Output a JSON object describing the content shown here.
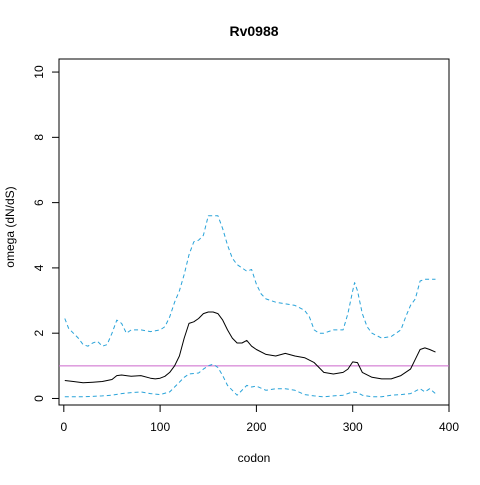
{
  "chart_data": {
    "type": "line",
    "title": "Rv0988",
    "xlabel": "codon",
    "ylabel": "omega (dN/dS)",
    "xlim": [
      -5,
      400
    ],
    "ylim": [
      -0.2,
      10.4
    ],
    "x_ticks": [
      0,
      100,
      200,
      300,
      400
    ],
    "y_ticks": [
      0,
      2,
      4,
      6,
      8,
      10
    ],
    "grid": false,
    "legend": "none",
    "reference_line": {
      "y": 1,
      "color": "#CC66CC"
    },
    "series": [
      {
        "role": "estimate",
        "color": "#000000",
        "dash": "solid",
        "x": [
          1,
          10,
          20,
          30,
          40,
          50,
          55,
          60,
          70,
          80,
          90,
          95,
          100,
          105,
          110,
          115,
          120,
          125,
          130,
          135,
          140,
          145,
          150,
          155,
          160,
          165,
          170,
          175,
          180,
          185,
          190,
          195,
          200,
          210,
          220,
          230,
          240,
          250,
          260,
          270,
          280,
          290,
          295,
          300,
          305,
          310,
          320,
          330,
          340,
          350,
          360,
          365,
          370,
          375,
          380,
          386
        ],
        "y": [
          0.55,
          0.52,
          0.48,
          0.5,
          0.52,
          0.58,
          0.7,
          0.72,
          0.68,
          0.7,
          0.62,
          0.6,
          0.62,
          0.68,
          0.8,
          1.0,
          1.3,
          1.85,
          2.3,
          2.35,
          2.45,
          2.6,
          2.65,
          2.65,
          2.6,
          2.4,
          2.1,
          1.85,
          1.7,
          1.7,
          1.78,
          1.6,
          1.5,
          1.35,
          1.3,
          1.38,
          1.3,
          1.25,
          1.1,
          0.8,
          0.75,
          0.8,
          0.9,
          1.12,
          1.1,
          0.8,
          0.65,
          0.6,
          0.6,
          0.7,
          0.9,
          1.2,
          1.5,
          1.55,
          1.5,
          1.42
        ]
      },
      {
        "role": "upper",
        "color": "#29A3D9",
        "dash": "dashed",
        "x": [
          1,
          5,
          10,
          15,
          20,
          25,
          30,
          35,
          40,
          45,
          50,
          55,
          60,
          65,
          70,
          80,
          90,
          100,
          105,
          110,
          115,
          120,
          125,
          130,
          135,
          140,
          145,
          150,
          160,
          165,
          170,
          175,
          180,
          190,
          195,
          200,
          205,
          210,
          220,
          230,
          240,
          250,
          255,
          260,
          265,
          270,
          280,
          290,
          295,
          300,
          302,
          305,
          310,
          315,
          320,
          330,
          340,
          350,
          355,
          360,
          365,
          370,
          375,
          380,
          386
        ],
        "y": [
          2.45,
          2.15,
          2.0,
          1.85,
          1.65,
          1.6,
          1.7,
          1.75,
          1.6,
          1.65,
          2.0,
          2.4,
          2.3,
          2.0,
          2.1,
          2.1,
          2.05,
          2.1,
          2.2,
          2.5,
          2.95,
          3.3,
          3.8,
          4.4,
          4.8,
          4.85,
          5.0,
          5.6,
          5.6,
          5.2,
          4.7,
          4.3,
          4.1,
          3.9,
          3.95,
          3.5,
          3.2,
          3.05,
          2.95,
          2.9,
          2.85,
          2.7,
          2.5,
          2.1,
          2.0,
          2.0,
          2.1,
          2.1,
          2.6,
          3.3,
          3.55,
          3.3,
          2.6,
          2.2,
          2.0,
          1.85,
          1.9,
          2.1,
          2.5,
          2.85,
          3.05,
          3.6,
          3.65,
          3.65,
          3.65
        ]
      },
      {
        "role": "lower",
        "color": "#29A3D9",
        "dash": "dashed",
        "x": [
          1,
          20,
          40,
          50,
          60,
          70,
          80,
          90,
          100,
          110,
          115,
          120,
          125,
          130,
          140,
          145,
          150,
          155,
          160,
          165,
          170,
          180,
          190,
          195,
          200,
          210,
          220,
          230,
          240,
          250,
          260,
          270,
          280,
          290,
          300,
          305,
          310,
          320,
          330,
          340,
          350,
          360,
          370,
          375,
          380,
          386
        ],
        "y": [
          0.05,
          0.05,
          0.08,
          0.1,
          0.15,
          0.18,
          0.2,
          0.15,
          0.12,
          0.2,
          0.35,
          0.5,
          0.65,
          0.75,
          0.78,
          0.9,
          1.0,
          1.05,
          0.95,
          0.7,
          0.4,
          0.1,
          0.4,
          0.35,
          0.38,
          0.25,
          0.3,
          0.3,
          0.25,
          0.12,
          0.08,
          0.05,
          0.08,
          0.1,
          0.2,
          0.18,
          0.1,
          0.05,
          0.05,
          0.1,
          0.12,
          0.15,
          0.3,
          0.2,
          0.3,
          0.15
        ]
      }
    ]
  }
}
